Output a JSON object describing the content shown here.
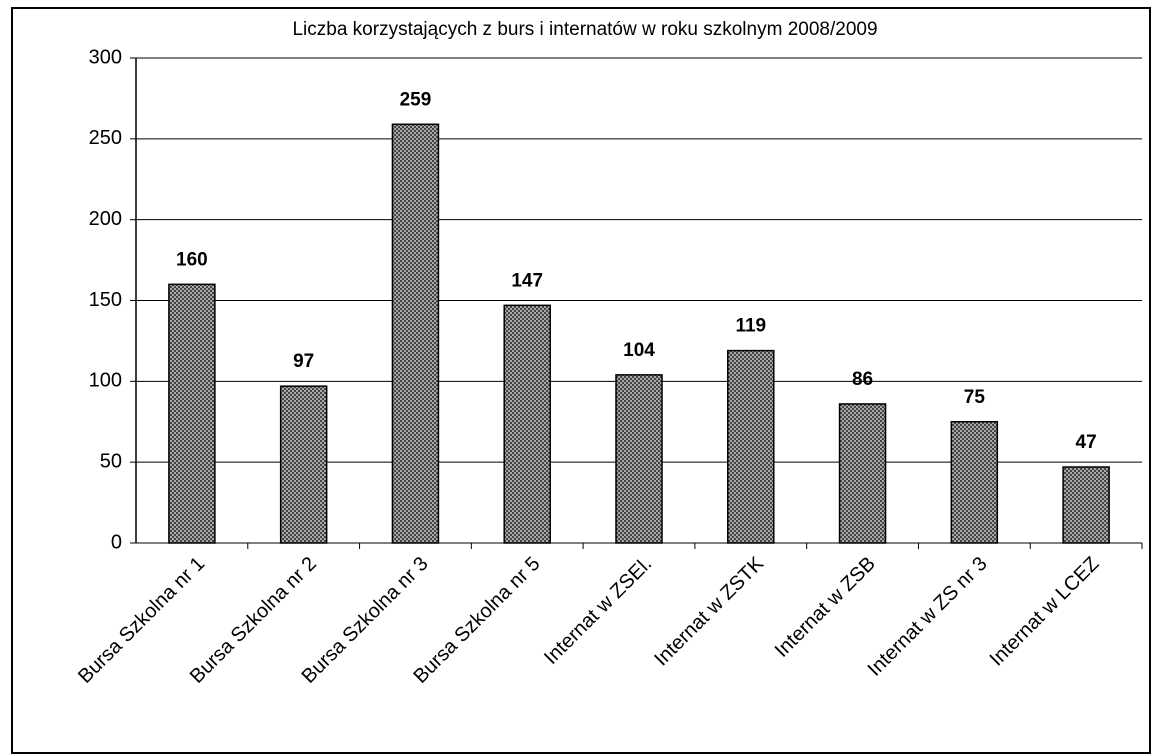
{
  "chart_data": {
    "type": "bar",
    "title": "Liczba korzystających z burs i internatów w roku szkolnym 2008/2009",
    "categories": [
      "Bursa Szkolna nr 1",
      "Bursa Szkolna nr 2",
      "Bursa Szkolna nr 3",
      "Bursa Szkolna nr 5",
      "Internat w ZSEl.",
      "Internat w ZSTK",
      "Internat w ZSB",
      "Internat w ZS nr 3",
      "Internat w LCEZ"
    ],
    "values": [
      160,
      97,
      259,
      147,
      104,
      119,
      86,
      75,
      47
    ],
    "color": "#a8a8a8",
    "ylim": [
      0,
      300
    ],
    "yticks": [
      0,
      50,
      100,
      150,
      200,
      250,
      300
    ],
    "grid": true
  }
}
